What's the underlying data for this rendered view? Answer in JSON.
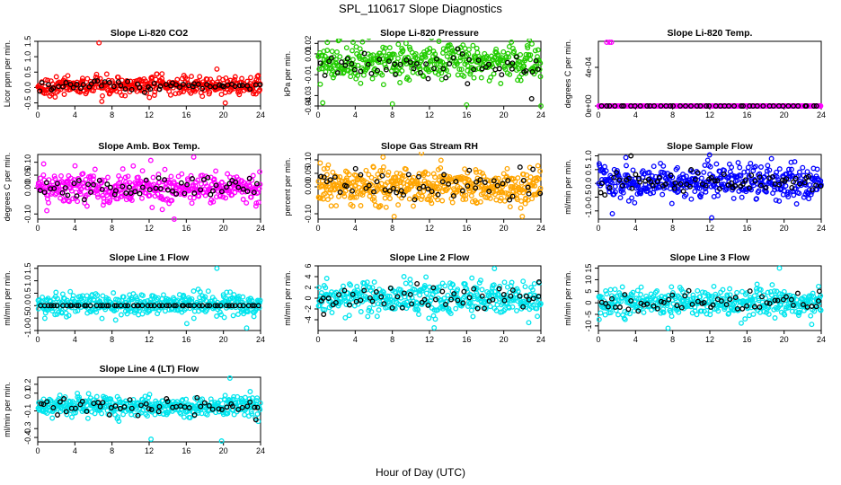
{
  "figure": {
    "title": "SPL_110617  Slope Diagnostics",
    "xlabel": "Hour of Day (UTC)"
  },
  "chart_data": [
    {
      "type": "scatter",
      "title": "Slope Li-820 CO2",
      "ylabel": "Licor ppm per min.",
      "color": "#ff0000",
      "xlim": [
        0,
        24
      ],
      "ylim": [
        -0.6,
        1.5
      ],
      "xticks": [
        "0",
        "4",
        "8",
        "12",
        "16",
        "20",
        "24"
      ],
      "yticks": [
        "-0.5",
        "0.0",
        "0.5",
        "1.0",
        "1.5"
      ],
      "series": [
        {
          "color": "#ff0000",
          "x_range": [
            0,
            24
          ],
          "center": 0.05,
          "spread": 0.18,
          "count": 400,
          "outliers": [
            [
              6.6,
              1.45
            ],
            [
              6.9,
              -0.45
            ],
            [
              19.3,
              0.6
            ],
            [
              20.2,
              -0.5
            ]
          ]
        },
        {
          "color": "#000000",
          "x_range": [
            0,
            24
          ],
          "center": 0.05,
          "spread": 0.12,
          "count": 60,
          "outliers": []
        }
      ]
    },
    {
      "type": "scatter",
      "title": "Slope Li-820 Pressure",
      "ylabel": "kPa per min.",
      "color": "#22cc00",
      "xlim": [
        0,
        24
      ],
      "ylim": [
        -0.04,
        0.022
      ],
      "xticks": [
        "0",
        "4",
        "8",
        "12",
        "16",
        "20",
        "24"
      ],
      "yticks": [
        "-0.04",
        "-0.03",
        "-0.01",
        "0.01",
        "0.02"
      ],
      "series": [
        {
          "color": "#22cc00",
          "x_range": [
            0,
            24
          ],
          "center": 0.002,
          "spread": 0.01,
          "count": 420,
          "outliers": [
            [
              0.5,
              -0.037
            ],
            [
              8,
              -0.038
            ],
            [
              16,
              -0.039
            ],
            [
              24,
              -0.04
            ],
            [
              1,
              0.021
            ]
          ]
        },
        {
          "color": "#000000",
          "x_range": [
            0,
            24
          ],
          "center": 0.0,
          "spread": 0.008,
          "count": 55,
          "outliers": [
            [
              23,
              -0.033
            ]
          ]
        }
      ]
    },
    {
      "type": "scatter",
      "title": "Slope Li-820 Temp.",
      "ylabel": "degrees C per min.",
      "color": "#ff00ff",
      "xlim": [
        0,
        24
      ],
      "ylim": [
        0,
        0.00067
      ],
      "xticks": [
        "0",
        "4",
        "8",
        "12",
        "16",
        "20",
        "24"
      ],
      "yticks": [
        "0e+00",
        "4e-04"
      ],
      "series": [
        {
          "color": "#ff00ff",
          "x_range": [
            0,
            24
          ],
          "center": 0.0,
          "spread": 0.0,
          "count": 320,
          "outliers": [
            [
              0.9,
              0.00066
            ],
            [
              1.2,
              0.00066
            ],
            [
              1.4,
              0.00066
            ]
          ]
        },
        {
          "color": "#000000",
          "x_range": [
            0,
            24
          ],
          "center": 0.0,
          "spread": 0.0,
          "count": 45,
          "outliers": []
        }
      ]
    },
    {
      "type": "scatter",
      "title": "Slope Amb. Box Temp.",
      "ylabel": "degrees C per min.",
      "color": "#ff00ff",
      "xlim": [
        0,
        24
      ],
      "ylim": [
        -0.12,
        0.13
      ],
      "xticks": [
        "0",
        "4",
        "8",
        "12",
        "16",
        "20",
        "24"
      ],
      "yticks": [
        "-0.10",
        "0.00",
        "0.05",
        "0.10"
      ],
      "series": [
        {
          "color": "#ff00ff",
          "x_range": [
            0,
            24
          ],
          "center": 0.0,
          "spread": 0.04,
          "count": 420,
          "outliers": [
            [
              16.8,
              0.12
            ],
            [
              14.7,
              -0.12
            ]
          ]
        },
        {
          "color": "#000000",
          "x_range": [
            0,
            24
          ],
          "center": 0.0,
          "spread": 0.025,
          "count": 60,
          "outliers": []
        }
      ]
    },
    {
      "type": "scatter",
      "title": "Slope Gas Stream RH",
      "ylabel": "percent per min.",
      "color": "#ffa500",
      "xlim": [
        0,
        24
      ],
      "ylim": [
        -0.12,
        0.12
      ],
      "xticks": [
        "0",
        "4",
        "8",
        "12",
        "16",
        "20",
        "24"
      ],
      "yticks": [
        "-0.10",
        "0.00",
        "0.05",
        "0.10"
      ],
      "series": [
        {
          "color": "#ffa500",
          "x_range": [
            0,
            24
          ],
          "center": 0.0,
          "spread": 0.04,
          "count": 460,
          "outliers": [
            [
              8.2,
              -0.11
            ],
            [
              22,
              -0.11
            ],
            [
              7,
              0.11
            ]
          ]
        },
        {
          "color": "#000000",
          "x_range": [
            0,
            24
          ],
          "center": 0.01,
          "spread": 0.03,
          "count": 55,
          "outliers": []
        }
      ]
    },
    {
      "type": "scatter",
      "title": "Slope Sample Flow",
      "ylabel": "ml/min per min.",
      "color": "#0000ff",
      "xlim": [
        0,
        24
      ],
      "ylim": [
        -1.3,
        1.05
      ],
      "xticks": [
        "0",
        "4",
        "8",
        "12",
        "16",
        "20",
        "24"
      ],
      "yticks": [
        "-1.0",
        "-0.5",
        "0.0",
        "0.5",
        "1.0"
      ],
      "series": [
        {
          "color": "#0000ff",
          "x_range": [
            0,
            24
          ],
          "center": 0.05,
          "spread": 0.38,
          "count": 420,
          "outliers": [
            [
              12.2,
              -1.25
            ],
            [
              1.5,
              -1.1
            ]
          ]
        },
        {
          "color": "#000000",
          "x_range": [
            0,
            24
          ],
          "center": 0.05,
          "spread": 0.25,
          "count": 70,
          "outliers": [
            [
              3.5,
              1.0
            ]
          ]
        }
      ]
    },
    {
      "type": "scatter",
      "title": "Slope Line 1 Flow",
      "ylabel": "ml/min per min.",
      "color": "#00e5ee",
      "xlim": [
        0,
        24
      ],
      "ylim": [
        -1.0,
        1.6
      ],
      "xticks": [
        "0",
        "4",
        "8",
        "12",
        "16",
        "20",
        "24"
      ],
      "yticks": [
        "-1.0",
        "-0.5",
        "0.0",
        "0.5",
        "1.0",
        "1.5"
      ],
      "series": [
        {
          "color": "#00e5ee",
          "x_range": [
            0,
            24
          ],
          "center": 0.05,
          "spread": 0.28,
          "count": 420,
          "outliers": [
            [
              19.3,
              1.5
            ],
            [
              22.5,
              -0.9
            ]
          ]
        },
        {
          "color": "#000000",
          "x_range": [
            0,
            24
          ],
          "center": 0.0,
          "spread": 0.0,
          "count": 60,
          "outliers": []
        }
      ]
    },
    {
      "type": "scatter",
      "title": "Slope Line 2 Flow",
      "ylabel": "ml/min per min.",
      "color": "#00e5ee",
      "xlim": [
        0,
        24
      ],
      "ylim": [
        -6,
        6
      ],
      "xticks": [
        "0",
        "4",
        "8",
        "12",
        "16",
        "20",
        "24"
      ],
      "yticks": [
        "-4",
        "-2",
        "0",
        "2",
        "4",
        "6"
      ],
      "series": [
        {
          "color": "#00e5ee",
          "x_range": [
            0,
            24
          ],
          "center": 0.0,
          "spread": 1.8,
          "count": 420,
          "outliers": [
            [
              19,
              5.5
            ],
            [
              12.5,
              -5.5
            ]
          ]
        },
        {
          "color": "#000000",
          "x_range": [
            0,
            24
          ],
          "center": 0.0,
          "spread": 1.4,
          "count": 55,
          "outliers": [
            [
              0.6,
              -3
            ],
            [
              23.8,
              3
            ]
          ]
        }
      ]
    },
    {
      "type": "scatter",
      "title": "Slope Line 3 Flow",
      "ylabel": "ml/min per min.",
      "color": "#00e5ee",
      "xlim": [
        0,
        24
      ],
      "ylim": [
        -12,
        16
      ],
      "xticks": [
        "0",
        "4",
        "8",
        "12",
        "16",
        "20",
        "24"
      ],
      "yticks": [
        "-10",
        "-5",
        "0",
        "5",
        "10",
        "15"
      ],
      "series": [
        {
          "color": "#00e5ee",
          "x_range": [
            0,
            24
          ],
          "center": 0.0,
          "spread": 3.6,
          "count": 420,
          "outliers": [
            [
              19.5,
              15
            ],
            [
              7.5,
              -11
            ]
          ]
        },
        {
          "color": "#000000",
          "x_range": [
            0,
            24
          ],
          "center": 0.0,
          "spread": 2.8,
          "count": 55,
          "outliers": [
            [
              23.8,
              5
            ]
          ]
        }
      ]
    },
    {
      "type": "scatter",
      "title": "Slope Line 4 (LT) Flow",
      "ylabel": "ml/min per min.",
      "color": "#00e5ee",
      "xlim": [
        0,
        24
      ],
      "ylim": [
        -0.45,
        0.28
      ],
      "xticks": [
        "0",
        "4",
        "8",
        "12",
        "16",
        "20",
        "24"
      ],
      "yticks": [
        "-0.4",
        "-0.3",
        "-0.1",
        "0.1",
        "0.2"
      ],
      "series": [
        {
          "color": "#00e5ee",
          "x_range": [
            0,
            24
          ],
          "center": -0.05,
          "spread": 0.07,
          "count": 420,
          "outliers": [
            [
              12.2,
              -0.42
            ],
            [
              19.8,
              -0.44
            ],
            [
              20.7,
              0.27
            ]
          ]
        },
        {
          "color": "#000000",
          "x_range": [
            0,
            24
          ],
          "center": -0.05,
          "spread": 0.06,
          "count": 55,
          "outliers": [
            [
              23.5,
              -0.2
            ]
          ]
        }
      ]
    }
  ]
}
